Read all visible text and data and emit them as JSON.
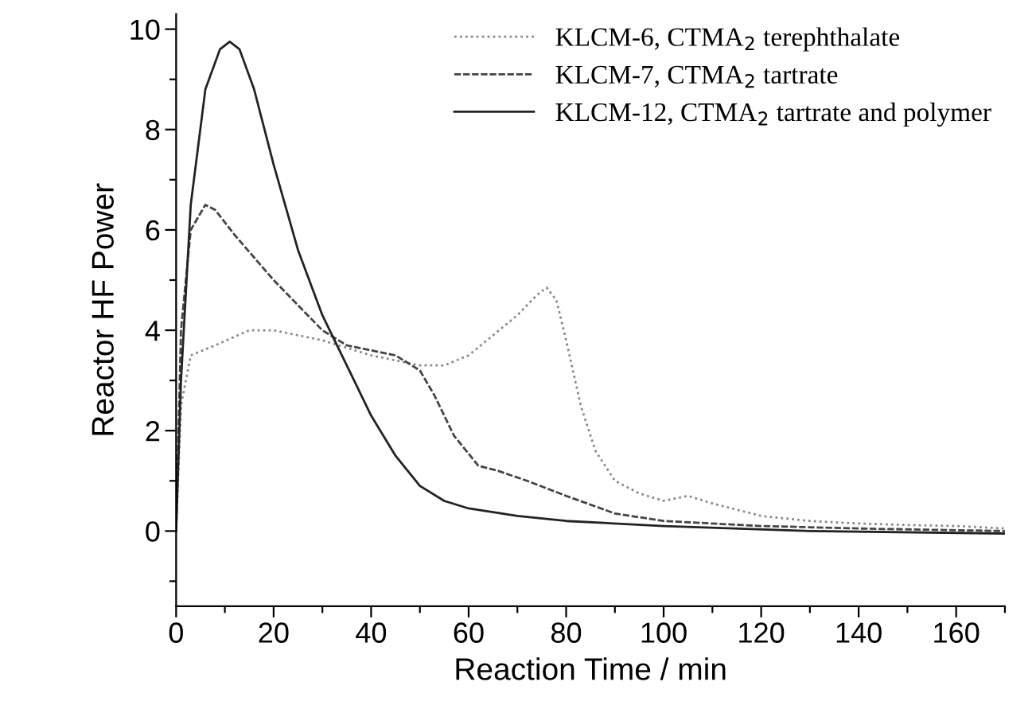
{
  "chart_data": {
    "type": "line",
    "xlabel": "Reaction Time / min",
    "ylabel": "Reactor HF Power",
    "xlim": [
      0,
      170
    ],
    "ylim": [
      -1.5,
      10.3
    ],
    "xticks": [
      0,
      {
        "value": 10,
        "label": null
      },
      20,
      {
        "value": 30,
        "label": null
      },
      40,
      {
        "value": 50,
        "label": null
      },
      60,
      {
        "value": 70,
        "label": null
      },
      80,
      {
        "value": 90,
        "label": null
      },
      100,
      {
        "value": 110,
        "label": null
      },
      120,
      {
        "value": 130,
        "label": null
      },
      140,
      {
        "value": 150,
        "label": null
      },
      160,
      {
        "value": 170,
        "label": null
      }
    ],
    "yticks": [
      {
        "value": -1,
        "label": null
      },
      0,
      {
        "value": 1,
        "label": null
      },
      2,
      {
        "value": 3,
        "label": null
      },
      4,
      {
        "value": 5,
        "label": null
      },
      6,
      {
        "value": 7,
        "label": null
      },
      8,
      {
        "value": 9,
        "label": null
      },
      10
    ],
    "legend": "top right",
    "grid": false,
    "marker": "none",
    "series": [
      {
        "name": "KLCM-6, CTMA$_{2}$ terephthalate",
        "color": "#888888",
        "line_style": "dotted",
        "x": [
          0,
          1,
          3,
          8,
          15,
          20,
          30,
          40,
          50,
          55,
          60,
          65,
          70,
          74,
          76,
          78,
          80,
          83,
          86,
          90,
          95,
          100,
          105,
          110,
          120,
          130,
          140,
          150,
          160,
          170
        ],
        "values": [
          0,
          2.5,
          3.5,
          3.7,
          4.0,
          4.0,
          3.8,
          3.5,
          3.3,
          3.3,
          3.5,
          3.9,
          4.3,
          4.7,
          4.85,
          4.6,
          3.8,
          2.5,
          1.6,
          1.0,
          0.75,
          0.6,
          0.7,
          0.55,
          0.3,
          0.2,
          0.15,
          0.12,
          0.1,
          0.05
        ]
      },
      {
        "name": "KLCM-7, CTMA$_{2}$ tartrate",
        "color": "#444444",
        "line_style": "dashed",
        "x": [
          0,
          1,
          3,
          6,
          8,
          12,
          20,
          30,
          35,
          40,
          45,
          50,
          53,
          57,
          62,
          66,
          72,
          80,
          90,
          100,
          120,
          140,
          170
        ],
        "values": [
          0,
          4,
          6.0,
          6.5,
          6.4,
          5.9,
          5.0,
          4.0,
          3.7,
          3.6,
          3.5,
          3.2,
          2.7,
          1.9,
          1.3,
          1.2,
          1.0,
          0.7,
          0.35,
          0.2,
          0.1,
          0.05,
          0.0
        ]
      },
      {
        "name": "KLCM-12, CTMA$_{2}$ tartrate and polymer",
        "color": "#222222",
        "line_style": "solid",
        "x": [
          0,
          1,
          3,
          6,
          9,
          11,
          13,
          16,
          20,
          25,
          30,
          35,
          40,
          45,
          50,
          55,
          60,
          70,
          80,
          100,
          130,
          170
        ],
        "values": [
          0,
          3,
          6.5,
          8.8,
          9.6,
          9.75,
          9.6,
          8.8,
          7.3,
          5.6,
          4.3,
          3.3,
          2.3,
          1.5,
          0.9,
          0.6,
          0.45,
          0.3,
          0.2,
          0.1,
          0.0,
          -0.05
        ]
      }
    ]
  }
}
